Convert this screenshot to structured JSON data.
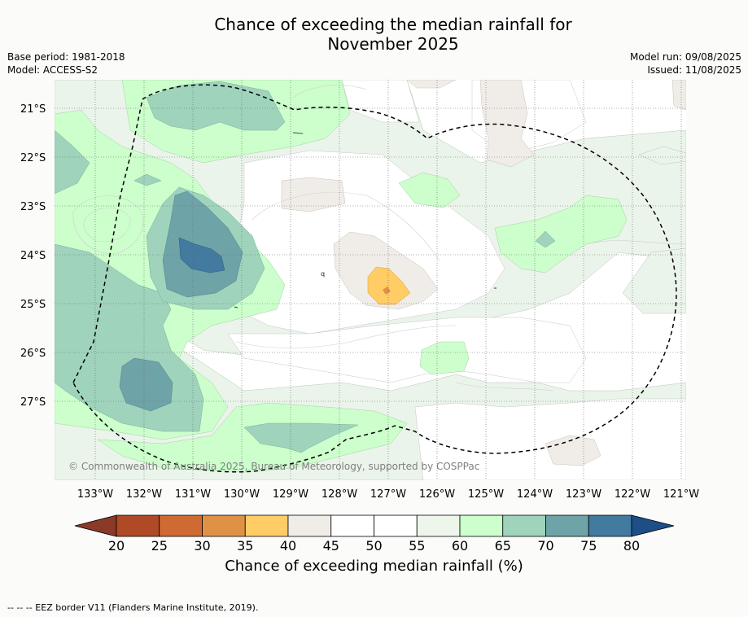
{
  "title_line1": "Chance of exceeding the median rainfall for",
  "title_line2": "November 2025",
  "base_period": "Base period: 1981-2018",
  "model": "Model: ACCESS-S2",
  "model_run": "Model run: 09/08/2025",
  "issued": "Issued: 11/08/2025",
  "copyright": "© Commonwealth of Australia 2025, Bureau of Meteorology, supported by COSPPac",
  "lat_labels": [
    "21°S",
    "22°S",
    "23°S",
    "24°S",
    "25°S",
    "26°S",
    "27°S"
  ],
  "lon_labels": [
    "133°W",
    "132°W",
    "131°W",
    "130°W",
    "129°W",
    "128°W",
    "127°W",
    "126°W",
    "125°W",
    "124°W",
    "123°W",
    "122°W",
    "121°W"
  ],
  "colorbar": {
    "title": "Chance of exceeding median rainfall (%)",
    "ticks": [
      "20",
      "25",
      "30",
      "35",
      "40",
      "45",
      "50",
      "55",
      "60",
      "65",
      "70",
      "75",
      "80"
    ],
    "colors": [
      "#8a3a26",
      "#b04a26",
      "#cf6a33",
      "#df9246",
      "#ffcc66",
      "#f0ede8",
      "#ffffff",
      "#ffffff",
      "#eef6ec",
      "#ccffcc",
      "#9fd3bc",
      "#6ea4a8",
      "#427aa0",
      "#1d4f86"
    ]
  },
  "footer": "--  --  -- EEZ border V11 (Flanders Marine Institute, 2019).",
  "map_colors": {
    "band_55_60": "#eaf4ea",
    "band_60_65": "#ccffcc",
    "band_65_70": "#9fd3bc",
    "band_70_75": "#6ea4a8",
    "band_75_80": "#427aa0",
    "band_40_45": "#f0ede8",
    "band_35_40": "#ffcc66",
    "band_30_35": "#df9246"
  }
}
